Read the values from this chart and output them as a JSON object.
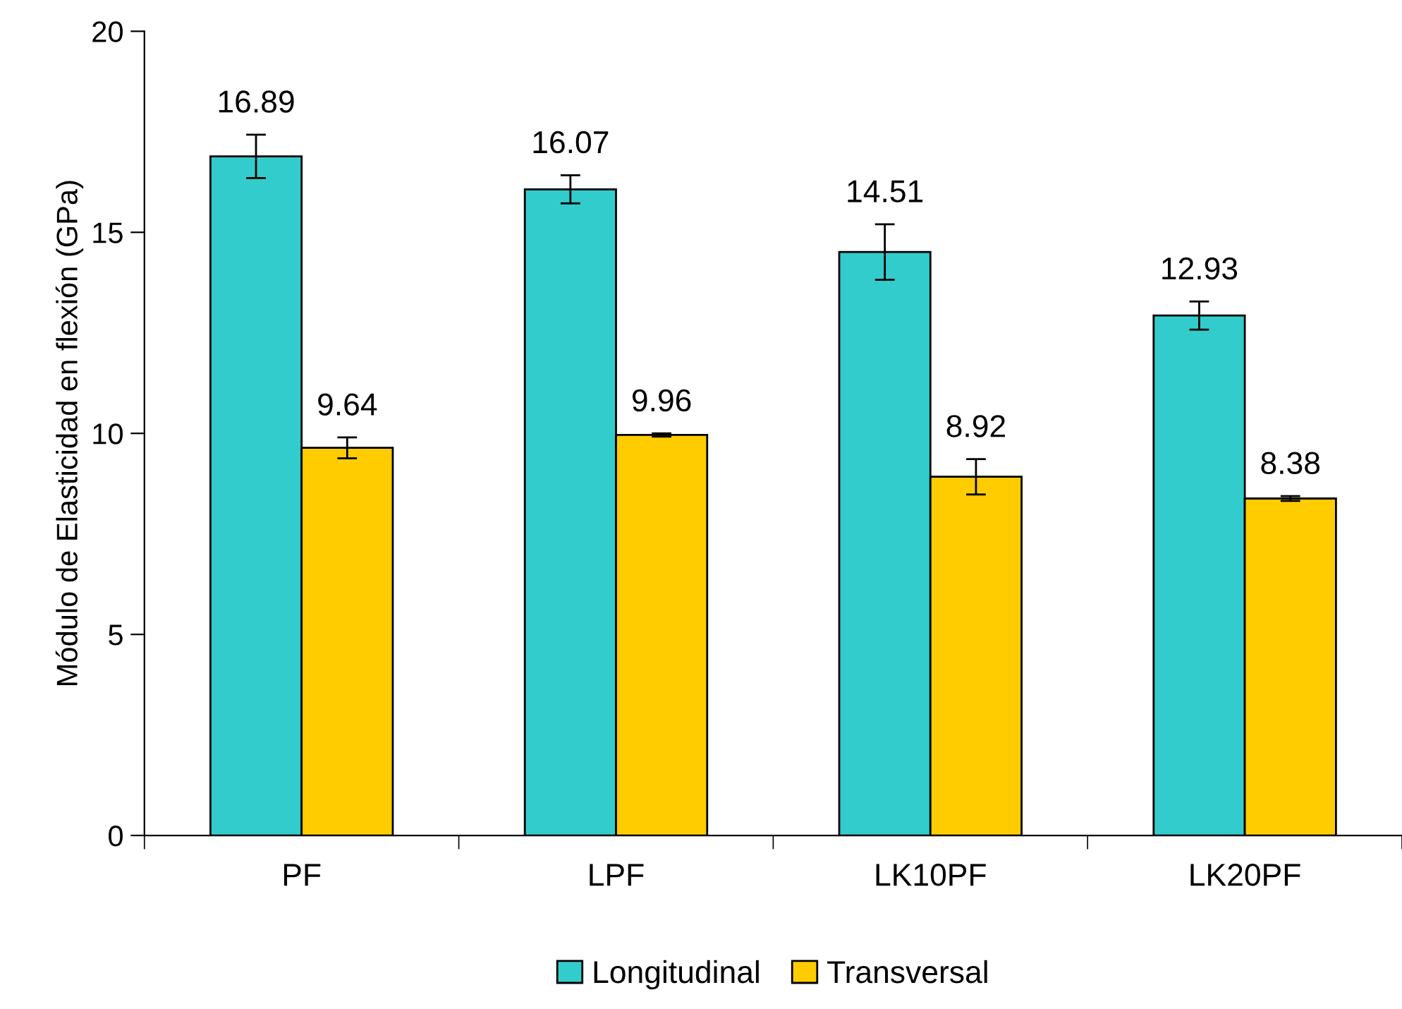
{
  "chart_data": {
    "type": "bar",
    "ylabel": "Módulo de Elasticidad en flexión (GPa)",
    "categories": [
      "PF",
      "LPF",
      "LK10PF",
      "LK20PF"
    ],
    "series": [
      {
        "name": "Longitudinal",
        "color": "#33cccc",
        "values": [
          16.89,
          16.07,
          14.51,
          12.93
        ],
        "errors": [
          0.54,
          0.35,
          0.69,
          0.35
        ]
      },
      {
        "name": "Transversal",
        "color": "#ffcc00",
        "values": [
          9.64,
          9.96,
          8.92,
          8.38
        ],
        "errors": [
          0.26,
          0.04,
          0.44,
          0.06
        ]
      }
    ],
    "ylim": [
      0,
      20
    ],
    "yticks": [
      0,
      5,
      10,
      15,
      20
    ],
    "grid": false,
    "legend": "bottom",
    "data_labels": true
  }
}
